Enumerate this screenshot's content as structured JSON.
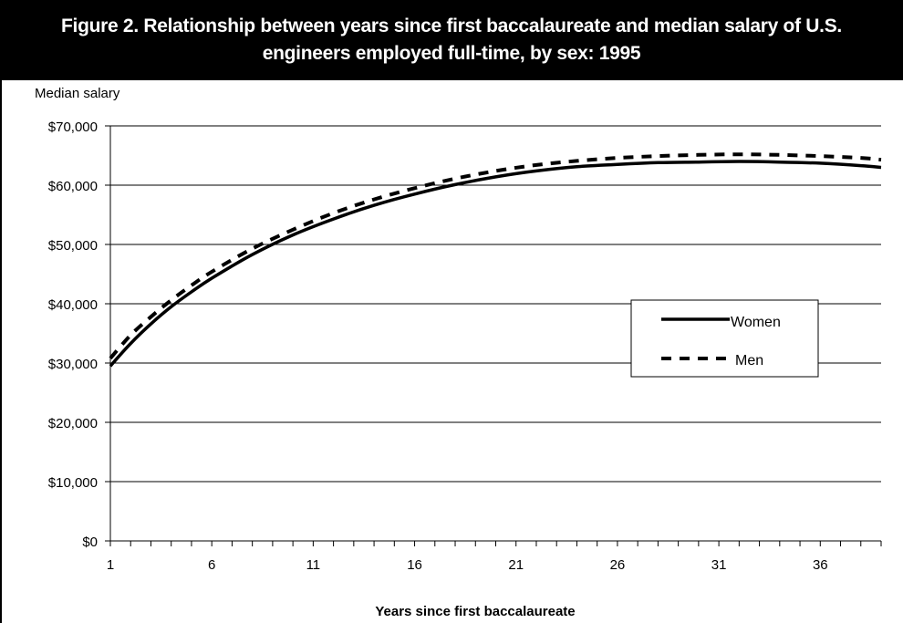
{
  "title_lines": [
    "Figure 2.  Relationship between years since first baccalaureate and median salary of U.S.",
    "engineers employed full-time, by sex: 1995"
  ],
  "chart_data": {
    "type": "line",
    "title": "Figure 2.  Relationship between years since first baccalaureate and median salary of U.S. engineers employed full-time, by sex: 1995",
    "ylabel": "Median salary",
    "xlabel": "Years since first baccalaureate",
    "x_tick_labels": [
      "1",
      "6",
      "11",
      "16",
      "21",
      "26",
      "31",
      "36"
    ],
    "y_tick_labels": [
      "$0",
      "$10,000",
      "$20,000",
      "$30,000",
      "$40,000",
      "$50,000",
      "$60,000",
      "$70,000"
    ],
    "xlim": [
      1,
      39
    ],
    "ylim": [
      0,
      70000
    ],
    "grid": "horizontal",
    "legend_position": "right-middle",
    "x": [
      1,
      2,
      3,
      4,
      5,
      6,
      8,
      10,
      12,
      14,
      16,
      18,
      20,
      22,
      24,
      26,
      28,
      30,
      32,
      34,
      36,
      38,
      39
    ],
    "series": [
      {
        "name": "Women",
        "style": "solid",
        "color": "#000000",
        "values": [
          29500,
          33300,
          36600,
          39500,
          42000,
          44300,
          48300,
          51600,
          54300,
          56600,
          58500,
          60100,
          61400,
          62400,
          63100,
          63500,
          63800,
          63900,
          64000,
          63900,
          63700,
          63300,
          63000
        ]
      },
      {
        "name": "Men",
        "style": "dashed",
        "color": "#000000",
        "values": [
          30800,
          34700,
          37800,
          40600,
          43100,
          45400,
          49300,
          52500,
          55300,
          57600,
          59500,
          61100,
          62400,
          63400,
          64100,
          64600,
          64900,
          65100,
          65200,
          65100,
          64900,
          64600,
          64300
        ]
      }
    ]
  }
}
